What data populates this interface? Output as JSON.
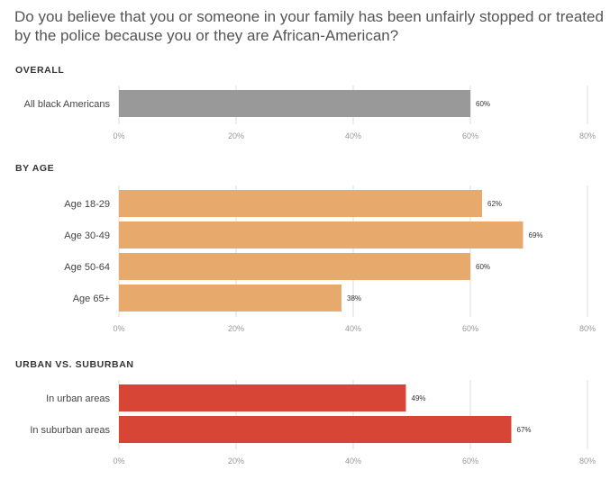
{
  "title": "Do you believe that you or someone in your family has been unfairly stopped or treated by the police because you or they are African-American?",
  "chart_data": [
    {
      "type": "bar",
      "orientation": "horizontal",
      "section": "OVERALL",
      "categories": [
        "All black Americans"
      ],
      "values": [
        60
      ],
      "value_labels": [
        "60%"
      ],
      "color": "#999999",
      "xlim": [
        0,
        80
      ],
      "ticks": [
        "0%",
        "20%",
        "40%",
        "60%",
        "80%"
      ],
      "grid": true
    },
    {
      "type": "bar",
      "orientation": "horizontal",
      "section": "BY AGE",
      "categories": [
        "Age 18-29",
        "Age 30-49",
        "Age 50-64",
        "Age 65+"
      ],
      "values": [
        62,
        69,
        60,
        38
      ],
      "value_labels": [
        "62%",
        "69%",
        "60%",
        "38%"
      ],
      "color": "#e8a96d",
      "xlim": [
        0,
        80
      ],
      "ticks": [
        "0%",
        "20%",
        "40%",
        "60%",
        "80%"
      ],
      "grid": true
    },
    {
      "type": "bar",
      "orientation": "horizontal",
      "section": "URBAN VS. SUBURBAN",
      "categories": [
        "In urban areas",
        "In suburban areas"
      ],
      "values": [
        49,
        67
      ],
      "value_labels": [
        "49%",
        "67%"
      ],
      "color": "#d64535",
      "xlim": [
        0,
        80
      ],
      "ticks": [
        "0%",
        "20%",
        "40%",
        "60%",
        "80%"
      ],
      "grid": true
    }
  ]
}
